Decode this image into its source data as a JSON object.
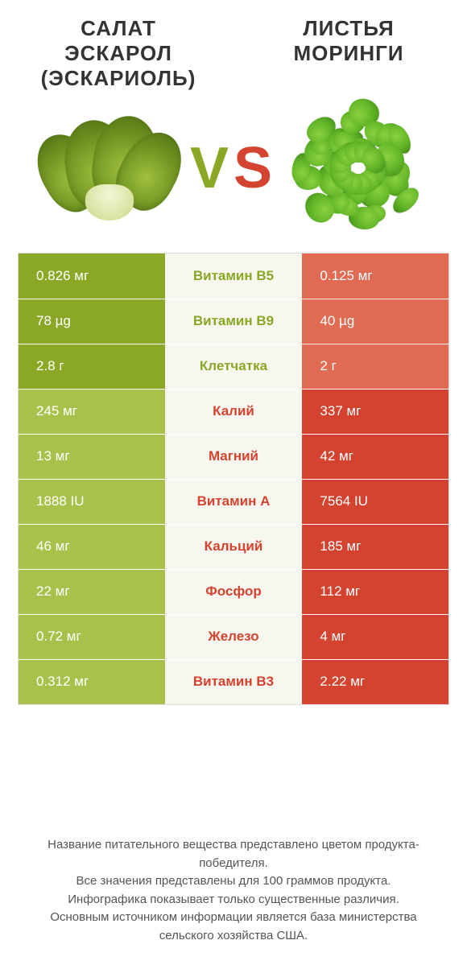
{
  "colors": {
    "green_winner": "#8aa826",
    "green_loser": "#a9c14b",
    "red_winner": "#d4432f",
    "red_loser": "#e06a52",
    "mid_bg": "#f7f7f0",
    "text_dark": "#333333"
  },
  "leftProduct": {
    "name": "Салат Эскарол (Эскариоль)"
  },
  "rightProduct": {
    "name": "Листья моринги"
  },
  "vs": "vs",
  "rows": [
    {
      "nutrient": "Витамин B5",
      "left": "0.826 мг",
      "right": "0.125 мг",
      "winner": "left"
    },
    {
      "nutrient": "Витамин B9",
      "left": "78 µg",
      "right": "40 µg",
      "winner": "left"
    },
    {
      "nutrient": "Клетчатка",
      "left": "2.8 г",
      "right": "2 г",
      "winner": "left"
    },
    {
      "nutrient": "Калий",
      "left": "245 мг",
      "right": "337 мг",
      "winner": "right"
    },
    {
      "nutrient": "Магний",
      "left": "13 мг",
      "right": "42 мг",
      "winner": "right"
    },
    {
      "nutrient": "Витамин A",
      "left": "1888 IU",
      "right": "7564 IU",
      "winner": "right"
    },
    {
      "nutrient": "Кальций",
      "left": "46 мг",
      "right": "185 мг",
      "winner": "right"
    },
    {
      "nutrient": "Фосфор",
      "left": "22 мг",
      "right": "112 мг",
      "winner": "right"
    },
    {
      "nutrient": "Железо",
      "left": "0.72 мг",
      "right": "4 мг",
      "winner": "right"
    },
    {
      "nutrient": "Витамин B3",
      "left": "0.312 мг",
      "right": "2.22 мг",
      "winner": "right"
    }
  ],
  "footer": [
    "Название питательного вещества представлено цветом продукта-победителя.",
    "Все значения представлены для 100 граммов продукта.",
    "Инфографика показывает только существенные различия.",
    "Основным источником информации является база министерства сельского хозяйства США."
  ]
}
